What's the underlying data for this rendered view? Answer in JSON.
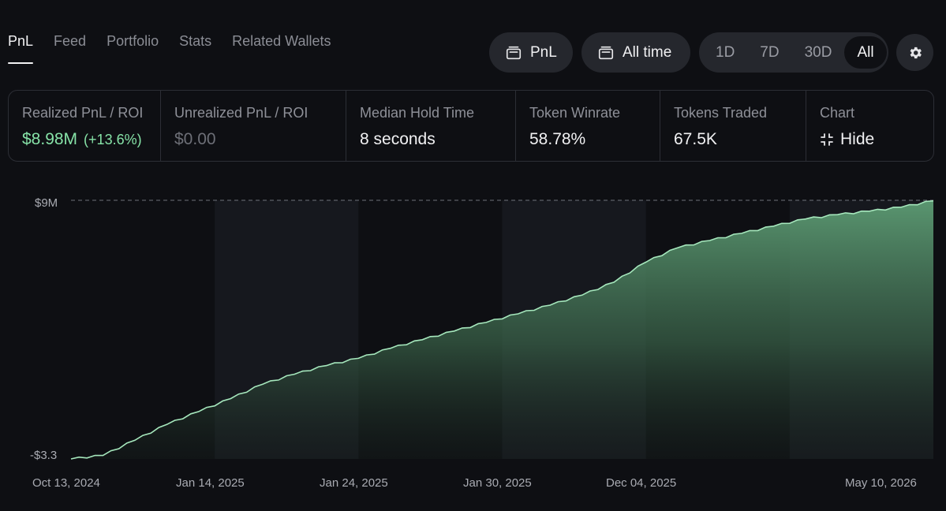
{
  "tabs": [
    {
      "label": "PnL",
      "active": true
    },
    {
      "label": "Feed",
      "active": false
    },
    {
      "label": "Portfolio",
      "active": false
    },
    {
      "label": "Stats",
      "active": false
    },
    {
      "label": "Related Wallets",
      "active": false
    }
  ],
  "toolbar": {
    "metric_label": "PnL",
    "timeframe_label": "All time",
    "ranges": [
      {
        "label": "1D",
        "active": false
      },
      {
        "label": "7D",
        "active": false
      },
      {
        "label": "30D",
        "active": false
      },
      {
        "label": "All",
        "active": true
      }
    ],
    "settings_icon": "gear-icon"
  },
  "stats": {
    "realized": {
      "label": "Realized PnL / ROI",
      "value": "$8.98M",
      "roi": "(+13.6%)"
    },
    "unrealized": {
      "label": "Unrealized PnL / ROI",
      "value": "$0.00"
    },
    "hold_time": {
      "label": "Median Hold Time",
      "value": "8 seconds"
    },
    "winrate": {
      "label": "Token Winrate",
      "value": "58.78%"
    },
    "traded": {
      "label": "Tokens Traded",
      "value": "67.5K"
    },
    "chart_toggle": {
      "label": "Chart",
      "value": "Hide",
      "icon": "collapse-icon"
    }
  },
  "colors": {
    "accent_green": "#86e2a7",
    "line_green": "#a6e8bd",
    "fill_green": "#5d9c74",
    "background": "#0e0f13",
    "pill": "#25272d"
  },
  "chart_data": {
    "type": "area",
    "y_tick_labels": [
      "$9M",
      "-$3.3"
    ],
    "ylim": [
      0,
      9000000
    ],
    "x_tick_labels": [
      "Oct 13, 2024",
      "Jan 14, 2025",
      "Jan 24, 2025",
      "Jan 30, 2025",
      "Dec 04, 2025",
      "May 10, 2026"
    ],
    "reference_line": "$9M",
    "grid": false,
    "series": [
      {
        "values": [
          0,
          120000,
          650000,
          1200000,
          1650000,
          2100000,
          2600000,
          2950000,
          3250000,
          3500000,
          3850000,
          4150000,
          4450000,
          4750000,
          5050000,
          5350000,
          5700000,
          6150000,
          6850000,
          7350000,
          7600000,
          7850000,
          8100000,
          8350000,
          8500000,
          8620000,
          8760000,
          8980000
        ]
      }
    ]
  }
}
